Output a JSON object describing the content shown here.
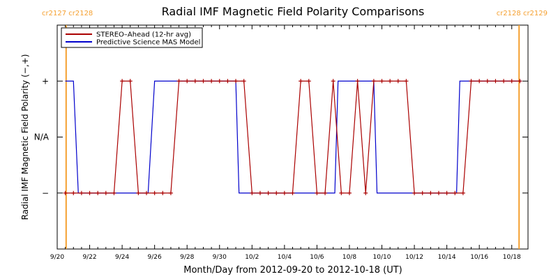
{
  "chart_data": {
    "type": "line",
    "title": "Radial IMF Magnetic Field Polarity Comparisons",
    "xlabel": "Month/Day from 2012-09-20 to 2012-10-18 (UT)",
    "ylabel": "Radial IMF Magnetic Field Polarity (−,+)",
    "xlim": [
      0,
      29
    ],
    "ylim": [
      -2,
      2
    ],
    "x_ticks": [
      {
        "x": 0,
        "label": "9/20"
      },
      {
        "x": 2,
        "label": "9/22"
      },
      {
        "x": 4,
        "label": "9/24"
      },
      {
        "x": 6,
        "label": "9/26"
      },
      {
        "x": 8,
        "label": "9/28"
      },
      {
        "x": 10,
        "label": "9/30"
      },
      {
        "x": 12,
        "label": "10/2"
      },
      {
        "x": 14,
        "label": "10/4"
      },
      {
        "x": 16,
        "label": "10/6"
      },
      {
        "x": 18,
        "label": "10/8"
      },
      {
        "x": 20,
        "label": "10/10"
      },
      {
        "x": 22,
        "label": "10/12"
      },
      {
        "x": 24,
        "label": "10/14"
      },
      {
        "x": 26,
        "label": "10/16"
      },
      {
        "x": 28,
        "label": "10/18"
      }
    ],
    "y_ticks": [
      {
        "y": 1,
        "label": "+"
      },
      {
        "y": 0,
        "label": "N/A"
      },
      {
        "y": -1,
        "label": "−"
      }
    ],
    "carrington_markers": [
      {
        "x": 0.55,
        "label": "cr2127 cr2128",
        "side": "left",
        "color": "#f5a030"
      },
      {
        "x": 28.45,
        "label": "cr2128 cr2129",
        "side": "right",
        "color": "#f5a030"
      }
    ],
    "legend_position": "top-left",
    "series": [
      {
        "name": "STEREO–Ahead (12-hr avg)",
        "color": "#aa0000",
        "markers": true,
        "x": [
          0.5,
          1.0,
          1.5,
          2.0,
          2.5,
          3.0,
          3.5,
          4.0,
          4.5,
          5.0,
          5.5,
          6.0,
          6.5,
          7.0,
          7.5,
          8.0,
          8.5,
          9.0,
          9.5,
          10.0,
          10.5,
          11.0,
          11.5,
          12.0,
          12.5,
          13.0,
          13.5,
          14.0,
          14.5,
          15.0,
          15.5,
          16.0,
          16.5,
          17.0,
          17.5,
          18.0,
          18.5,
          19.0,
          19.5,
          20.0,
          20.5,
          21.0,
          21.5,
          22.0,
          22.5,
          23.0,
          23.5,
          24.0,
          24.5,
          25.0,
          25.5,
          26.0,
          26.5,
          27.0,
          27.5,
          28.0,
          28.5
        ],
        "y": [
          -1,
          -1,
          -1,
          -1,
          -1,
          -1,
          -1,
          1,
          1,
          -1,
          -1,
          -1,
          -1,
          -1,
          1,
          1,
          1,
          1,
          1,
          1,
          1,
          1,
          1,
          -1,
          -1,
          -1,
          -1,
          -1,
          -1,
          1,
          1,
          -1,
          -1,
          1,
          -1,
          -1,
          1,
          -1,
          1,
          1,
          1,
          1,
          1,
          -1,
          -1,
          -1,
          -1,
          -1,
          -1,
          -1,
          1,
          1,
          1,
          1,
          1,
          1,
          1
        ]
      },
      {
        "name": "Predictive Science MAS Model",
        "color": "#0000cc",
        "markers": false,
        "x": [
          0.5,
          1.0,
          1.3,
          5.6,
          6.0,
          11.0,
          11.2,
          17.1,
          17.3,
          19.5,
          19.7,
          24.6,
          24.8,
          28.6
        ],
        "y": [
          1,
          1,
          -1,
          -1,
          1,
          1,
          -1,
          -1,
          1,
          1,
          -1,
          -1,
          1,
          1
        ]
      }
    ]
  }
}
